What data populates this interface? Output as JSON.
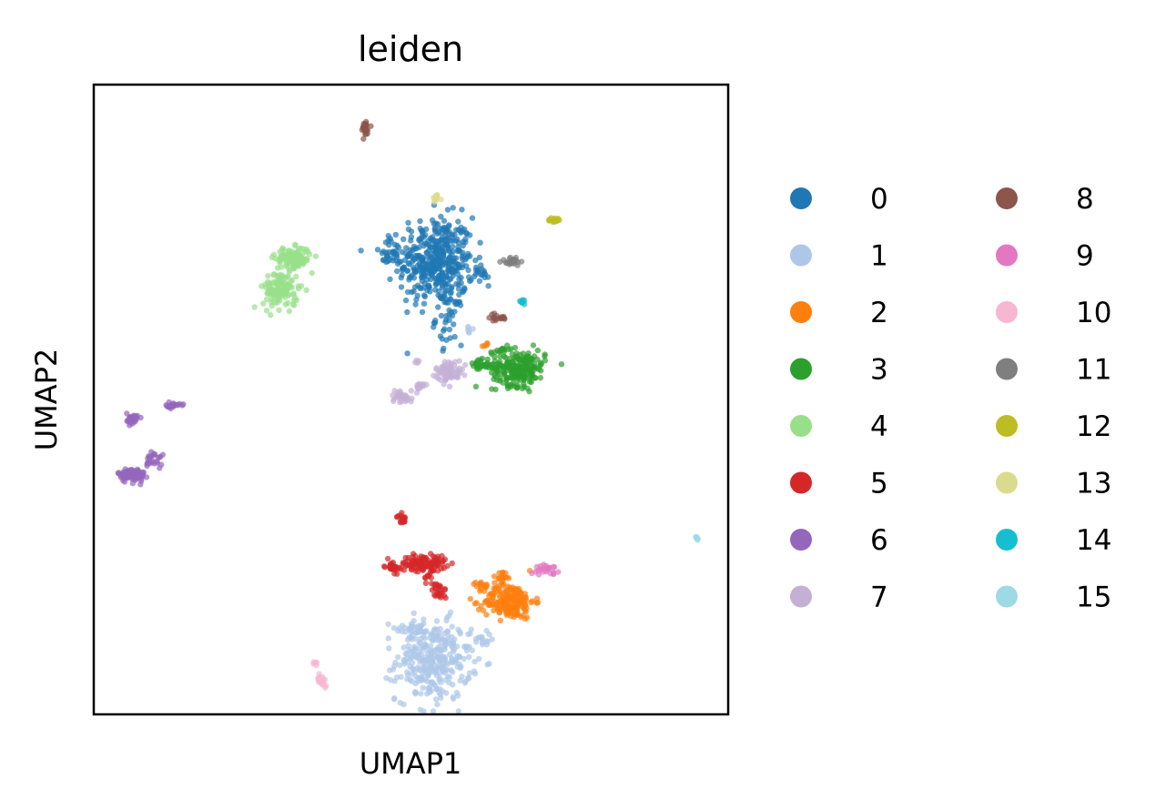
{
  "chart_data": {
    "type": "scatter",
    "title": "leiden",
    "xlabel": "UMAP1",
    "ylabel": "UMAP2",
    "xlim": [
      0,
      10
    ],
    "ylim": [
      0,
      10
    ],
    "grid": false,
    "legend_position": "right",
    "legend_columns": 2,
    "series": [
      {
        "name": "0",
        "color": "#1f77b4",
        "clusters": [
          {
            "cx": 5.4,
            "cy": 7.2,
            "sx": 0.42,
            "sy": 0.5,
            "n": 420
          },
          {
            "cx": 5.6,
            "cy": 6.3,
            "sx": 0.15,
            "sy": 0.3,
            "n": 40
          },
          {
            "cx": 4.7,
            "cy": 7.3,
            "sx": 0.2,
            "sy": 0.15,
            "n": 30
          },
          {
            "cx": 6.1,
            "cy": 7.0,
            "sx": 0.1,
            "sy": 0.1,
            "n": 15
          }
        ]
      },
      {
        "name": "1",
        "color": "#aec7e8",
        "clusters": [
          {
            "cx": 5.35,
            "cy": 0.85,
            "sx": 0.42,
            "sy": 0.45,
            "n": 320
          },
          {
            "cx": 5.0,
            "cy": 1.35,
            "sx": 0.2,
            "sy": 0.12,
            "n": 25
          },
          {
            "cx": 6.1,
            "cy": 1.2,
            "sx": 0.15,
            "sy": 0.1,
            "n": 15
          },
          {
            "cx": 5.9,
            "cy": 6.1,
            "sx": 0.05,
            "sy": 0.05,
            "n": 6
          }
        ]
      },
      {
        "name": "2",
        "color": "#ff7f0e",
        "clusters": [
          {
            "cx": 6.55,
            "cy": 1.8,
            "sx": 0.28,
            "sy": 0.2,
            "n": 200
          },
          {
            "cx": 6.45,
            "cy": 2.2,
            "sx": 0.08,
            "sy": 0.06,
            "n": 15
          },
          {
            "cx": 6.1,
            "cy": 2.05,
            "sx": 0.1,
            "sy": 0.04,
            "n": 12
          },
          {
            "cx": 6.2,
            "cy": 5.85,
            "sx": 0.04,
            "sy": 0.04,
            "n": 5
          }
        ]
      },
      {
        "name": "3",
        "color": "#2ca02c",
        "clusters": [
          {
            "cx": 6.7,
            "cy": 5.5,
            "sx": 0.3,
            "sy": 0.2,
            "n": 220
          },
          {
            "cx": 6.1,
            "cy": 5.55,
            "sx": 0.15,
            "sy": 0.06,
            "n": 30
          },
          {
            "cx": 6.4,
            "cy": 5.8,
            "sx": 0.1,
            "sy": 0.06,
            "n": 12
          }
        ]
      },
      {
        "name": "4",
        "color": "#98df8a",
        "clusters": [
          {
            "cx": 3.15,
            "cy": 7.25,
            "sx": 0.2,
            "sy": 0.12,
            "n": 110
          },
          {
            "cx": 2.95,
            "cy": 6.75,
            "sx": 0.2,
            "sy": 0.22,
            "n": 130
          }
        ]
      },
      {
        "name": "5",
        "color": "#d62728",
        "clusters": [
          {
            "cx": 5.2,
            "cy": 2.4,
            "sx": 0.25,
            "sy": 0.09,
            "n": 110
          },
          {
            "cx": 4.7,
            "cy": 2.35,
            "sx": 0.08,
            "sy": 0.07,
            "n": 30
          },
          {
            "cx": 5.45,
            "cy": 1.95,
            "sx": 0.08,
            "sy": 0.1,
            "n": 25
          },
          {
            "cx": 4.85,
            "cy": 3.1,
            "sx": 0.05,
            "sy": 0.05,
            "n": 20
          },
          {
            "cx": 5.3,
            "cy": 2.2,
            "sx": 0.07,
            "sy": 0.1,
            "n": 10
          }
        ]
      },
      {
        "name": "6",
        "color": "#9467bd",
        "clusters": [
          {
            "cx": 0.6,
            "cy": 3.8,
            "sx": 0.15,
            "sy": 0.08,
            "n": 85
          },
          {
            "cx": 0.62,
            "cy": 4.7,
            "sx": 0.07,
            "sy": 0.06,
            "n": 30
          },
          {
            "cx": 1.25,
            "cy": 4.9,
            "sx": 0.08,
            "sy": 0.03,
            "n": 22
          },
          {
            "cx": 0.95,
            "cy": 4.05,
            "sx": 0.1,
            "sy": 0.1,
            "n": 25
          }
        ]
      },
      {
        "name": "7",
        "color": "#c5b0d5",
        "clusters": [
          {
            "cx": 5.6,
            "cy": 5.45,
            "sx": 0.15,
            "sy": 0.12,
            "n": 70
          },
          {
            "cx": 4.85,
            "cy": 5.05,
            "sx": 0.12,
            "sy": 0.07,
            "n": 35
          },
          {
            "cx": 5.15,
            "cy": 5.2,
            "sx": 0.12,
            "sy": 0.05,
            "n": 15
          },
          {
            "cx": 5.1,
            "cy": 5.6,
            "sx": 0.04,
            "sy": 0.02,
            "n": 4
          }
        ]
      },
      {
        "name": "8",
        "color": "#8c564b",
        "clusters": [
          {
            "cx": 4.27,
            "cy": 9.3,
            "sx": 0.05,
            "sy": 0.1,
            "n": 30
          },
          {
            "cx": 6.35,
            "cy": 6.3,
            "sx": 0.12,
            "sy": 0.04,
            "n": 18
          }
        ]
      },
      {
        "name": "9",
        "color": "#e377c2",
        "clusters": [
          {
            "cx": 7.15,
            "cy": 2.3,
            "sx": 0.13,
            "sy": 0.05,
            "n": 25
          }
        ]
      },
      {
        "name": "10",
        "color": "#f7b6d2",
        "clusters": [
          {
            "cx": 3.6,
            "cy": 0.55,
            "sx": 0.06,
            "sy": 0.07,
            "n": 18
          },
          {
            "cx": 3.5,
            "cy": 0.8,
            "sx": 0.03,
            "sy": 0.03,
            "n": 5
          }
        ]
      },
      {
        "name": "11",
        "color": "#7f7f7f",
        "clusters": [
          {
            "cx": 6.6,
            "cy": 7.2,
            "sx": 0.12,
            "sy": 0.05,
            "n": 30
          }
        ]
      },
      {
        "name": "12",
        "color": "#bcbd22",
        "clusters": [
          {
            "cx": 7.25,
            "cy": 7.85,
            "sx": 0.06,
            "sy": 0.03,
            "n": 20
          }
        ]
      },
      {
        "name": "13",
        "color": "#dbdb8d",
        "clusters": [
          {
            "cx": 5.4,
            "cy": 8.2,
            "sx": 0.04,
            "sy": 0.04,
            "n": 12
          }
        ]
      },
      {
        "name": "14",
        "color": "#17becf",
        "clusters": [
          {
            "cx": 6.75,
            "cy": 6.55,
            "sx": 0.05,
            "sy": 0.03,
            "n": 12
          }
        ]
      },
      {
        "name": "15",
        "color": "#9edae5",
        "clusters": [
          {
            "cx": 9.5,
            "cy": 2.8,
            "sx": 0.03,
            "sy": 0.03,
            "n": 8
          }
        ]
      }
    ]
  }
}
